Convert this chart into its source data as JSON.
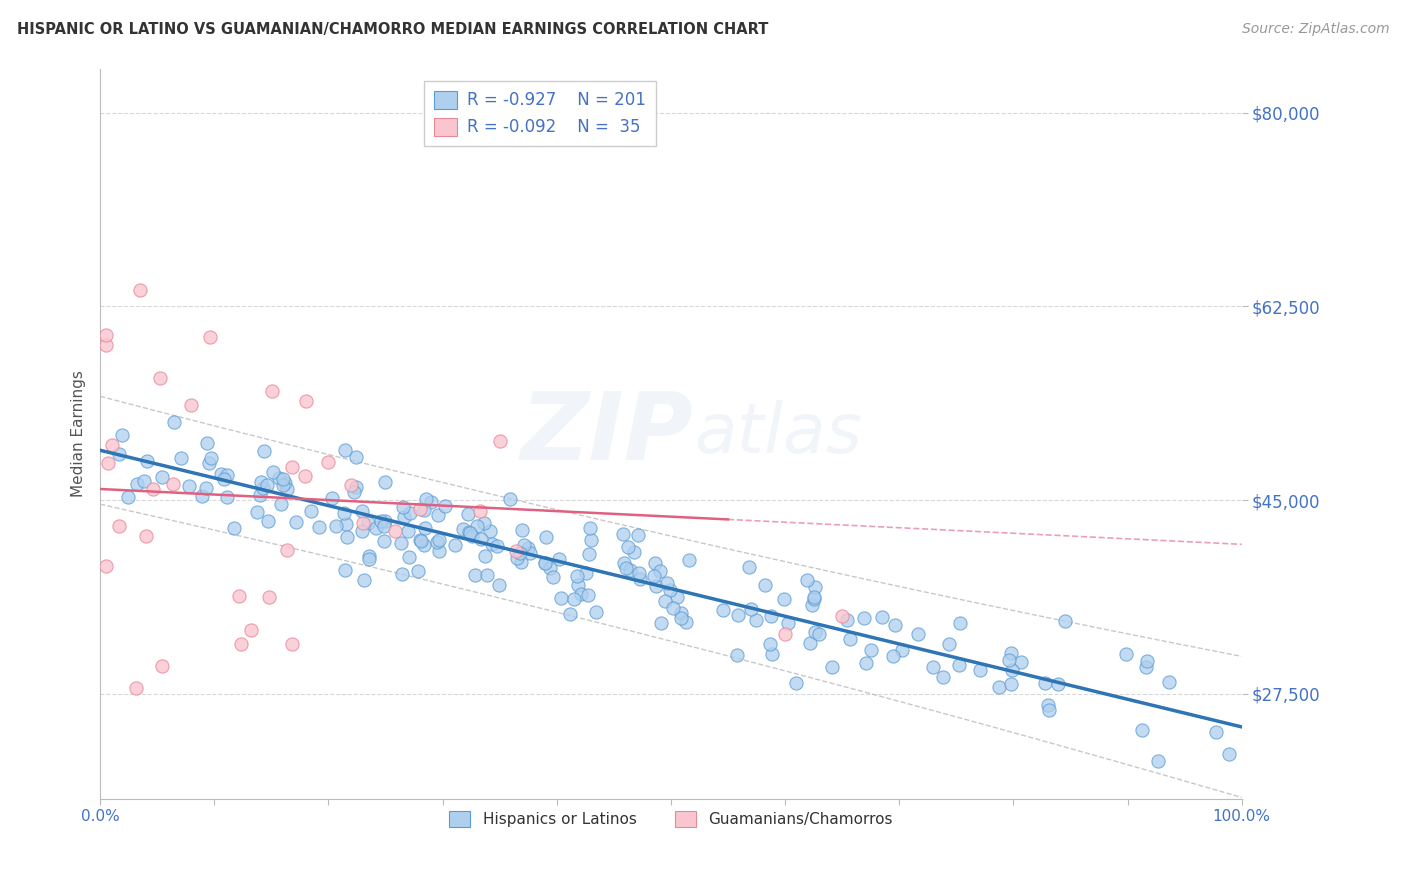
{
  "title": "HISPANIC OR LATINO VS GUAMANIAN/CHAMORRO MEDIAN EARNINGS CORRELATION CHART",
  "source_text": "Source: ZipAtlas.com",
  "ylabel": "Median Earnings",
  "x_min": 0.0,
  "x_max": 1.0,
  "y_min": 18000,
  "y_max": 84000,
  "yticks": [
    27500,
    45000,
    62500,
    80000
  ],
  "ytick_labels": [
    "$27,500",
    "$45,000",
    "$62,500",
    "$80,000"
  ],
  "xtick_positions": [
    0.0,
    0.1,
    0.2,
    0.3,
    0.4,
    0.5,
    0.6,
    0.7,
    0.8,
    0.9,
    1.0
  ],
  "xtick_labels": [
    "0.0%",
    "",
    "",
    "",
    "",
    "",
    "",
    "",
    "",
    "",
    "100.0%"
  ],
  "blue_R": -0.927,
  "blue_N": 201,
  "pink_R": -0.092,
  "pink_N": 35,
  "blue_color": "#AECFEE",
  "blue_edge_color": "#5B9BD5",
  "blue_line_color": "#2E75B6",
  "pink_color": "#F9C6D0",
  "pink_edge_color": "#E8899A",
  "pink_line_color": "#E06080",
  "text_color": "#4472C4",
  "grid_color": "#C8C8C8",
  "watermark_color": "#4472C4",
  "watermark_alpha": 0.07,
  "legend_label_blue": "Hispanics or Latinos",
  "legend_label_pink": "Guamanians/Chamorros",
  "blue_intercept": 49500,
  "blue_slope": -25000,
  "pink_intercept": 46000,
  "pink_slope": -5000,
  "pink_line_x_end": 0.55,
  "ci_color": "#BBBBBB",
  "ci_linestyle": "--"
}
